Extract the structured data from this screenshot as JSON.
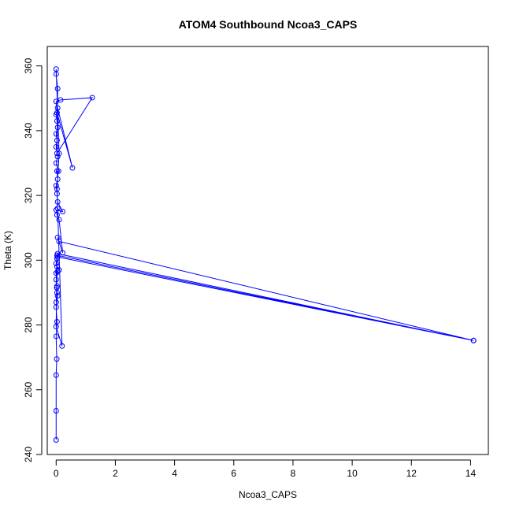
{
  "chart_data": {
    "type": "line",
    "title": "ATOM4 Southbound Ncoa3_CAPS",
    "xlabel": "Ncoa3_CAPS",
    "ylabel": "Theta (K)",
    "xlim": [
      -0.3,
      14.6
    ],
    "ylim": [
      240,
      366
    ],
    "xticks": [
      0,
      2,
      4,
      6,
      8,
      10,
      12,
      14
    ],
    "yticks": [
      240,
      260,
      280,
      300,
      320,
      340,
      360
    ],
    "grid": false,
    "series": [
      {
        "color": "#0000ff",
        "marker": "open-circle",
        "points": [
          [
            0.0,
            244.5
          ],
          [
            0.0,
            253.5
          ],
          [
            0.0,
            264.5
          ],
          [
            0.02,
            269.5
          ],
          [
            0.0,
            276.5
          ],
          [
            0.03,
            281.0
          ],
          [
            0.0,
            285.5
          ],
          [
            0.05,
            289.0
          ],
          [
            0.02,
            291.5
          ],
          [
            0.0,
            294.0
          ],
          [
            0.05,
            296.5
          ],
          [
            0.1,
            297.0
          ],
          [
            0.03,
            298.0
          ],
          [
            0.0,
            299.0
          ],
          [
            0.03,
            300.5
          ],
          [
            0.05,
            301.0
          ],
          [
            14.1,
            275.2
          ],
          [
            0.1,
            305.8
          ],
          [
            0.05,
            307.0
          ],
          [
            0.22,
            302.3
          ],
          [
            0.1,
            312.5
          ],
          [
            0.03,
            314.0
          ],
          [
            0.0,
            315.5
          ],
          [
            0.22,
            315.0
          ],
          [
            0.05,
            318.0
          ],
          [
            0.03,
            320.5
          ],
          [
            0.0,
            323.0
          ],
          [
            0.05,
            325.0
          ],
          [
            0.03,
            327.5
          ],
          [
            0.08,
            327.5
          ],
          [
            0.0,
            330.0
          ],
          [
            0.05,
            332.0
          ],
          [
            0.0,
            335.0
          ],
          [
            0.03,
            337.0
          ],
          [
            0.0,
            339.0
          ],
          [
            0.05,
            341.0
          ],
          [
            0.03,
            343.0
          ],
          [
            0.0,
            345.0
          ],
          [
            0.05,
            347.0
          ],
          [
            0.55,
            328.5
          ],
          [
            0.03,
            345.5
          ],
          [
            0.0,
            349.0
          ],
          [
            0.15,
            349.5
          ],
          [
            1.22,
            350.2
          ],
          [
            0.03,
            333.0
          ],
          [
            0.05,
            353.0
          ],
          [
            0.0,
            357.5
          ],
          [
            0.0,
            359.0
          ],
          [
            0.1,
            333.0
          ],
          [
            0.03,
            322.0
          ],
          [
            0.05,
            316.0
          ],
          [
            0.2,
            273.5
          ],
          [
            0.0,
            279.5
          ],
          [
            0.03,
            301.5
          ],
          [
            14.1,
            275.2
          ],
          [
            0.05,
            302.0
          ],
          [
            0.0,
            296.0
          ],
          [
            0.03,
            290.0
          ],
          [
            0.0,
            287.0
          ],
          [
            0.03,
            292.0
          ]
        ]
      }
    ]
  }
}
